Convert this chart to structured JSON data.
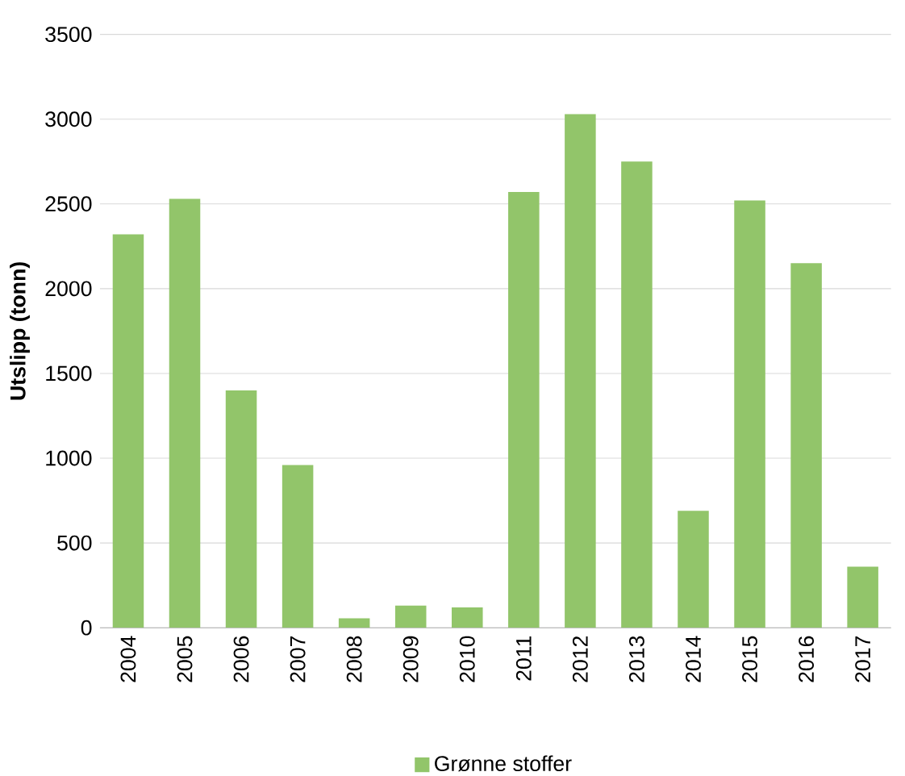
{
  "chart_data": {
    "type": "bar",
    "ylabel": "Utslipp (tonn)",
    "categories": [
      "2004",
      "2005",
      "2006",
      "2007",
      "2008",
      "2009",
      "2010",
      "2011",
      "2012",
      "2013",
      "2014",
      "2015",
      "2016",
      "2017"
    ],
    "series": [
      {
        "name": "Grønne stoffer",
        "color": "#92c56a",
        "values": [
          2320,
          2530,
          1400,
          960,
          55,
          130,
          120,
          2570,
          3030,
          2750,
          690,
          2520,
          2150,
          360
        ]
      }
    ],
    "ylim": [
      0,
      3500
    ],
    "yticks": [
      0,
      500,
      1000,
      1500,
      2000,
      2500,
      3000,
      3500
    ],
    "grid": "y",
    "legend": "bottom"
  }
}
